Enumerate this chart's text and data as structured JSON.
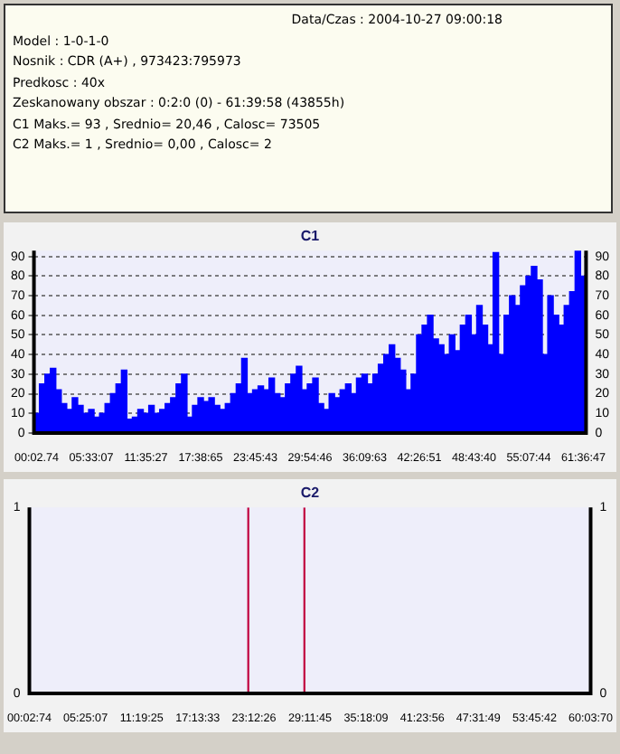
{
  "chart_data": [
    {
      "type": "other",
      "annotations": [
        "Data/Czas : 2004-10-27 09:00:18",
        "Model : 1-0-1-0",
        "Nosnik : CDR (A+) , 973423:795973",
        "Predkosc : 40x",
        "Zeskanowany obszar : 0:2:0 (0) - 61:39:58 (43855h)",
        "C1 Maks.= 93 , Srednio= 20,46 , Calosc= 73505",
        "C2 Maks.= 1 , Srednio= 0,00 , Calosc= 2"
      ]
    },
    {
      "type": "bar",
      "title": "C1",
      "color": "#0000ff",
      "grid": "y",
      "categories": [
        "00:02.74",
        null,
        null,
        null,
        null,
        null,
        null,
        null,
        null,
        null,
        "05:33:07",
        null,
        null,
        null,
        null,
        null,
        null,
        null,
        null,
        null,
        "11:35:27",
        null,
        null,
        null,
        null,
        null,
        null,
        null,
        null,
        null,
        "17:38:65",
        null,
        null,
        null,
        null,
        null,
        null,
        null,
        null,
        null,
        "23:45:43",
        null,
        null,
        null,
        null,
        null,
        null,
        null,
        null,
        null,
        "29:54:46",
        null,
        null,
        null,
        null,
        null,
        null,
        null,
        null,
        null,
        "36:09:63",
        null,
        null,
        null,
        null,
        null,
        null,
        null,
        null,
        null,
        "42:26:51",
        null,
        null,
        null,
        null,
        null,
        null,
        null,
        null,
        null,
        "48:43:40",
        null,
        null,
        null,
        null,
        null,
        null,
        null,
        null,
        null,
        "55:07:44",
        null,
        null,
        null,
        null,
        null,
        null,
        null,
        null,
        null,
        "61:36:47"
      ],
      "values": [
        10,
        25,
        30,
        33,
        22,
        15,
        12,
        18,
        14,
        10,
        12,
        8,
        10,
        15,
        20,
        25,
        32,
        7,
        8,
        12,
        10,
        14,
        10,
        12,
        15,
        18,
        25,
        30,
        8,
        14,
        18,
        16,
        18,
        14,
        12,
        15,
        20,
        25,
        38,
        20,
        22,
        24,
        22,
        28,
        20,
        18,
        25,
        30,
        34,
        22,
        25,
        28,
        15,
        12,
        20,
        18,
        22,
        25,
        20,
        28,
        30,
        25,
        30,
        35,
        40,
        45,
        38,
        32,
        22,
        30,
        50,
        55,
        60,
        48,
        45,
        40,
        50,
        42,
        55,
        60,
        50,
        65,
        55,
        45,
        92,
        40,
        60,
        70,
        65,
        75,
        80,
        85,
        78,
        40,
        70,
        60,
        55,
        65,
        72,
        93,
        80
      ],
      "ylim": [
        0,
        93
      ],
      "yticks": [
        0,
        10,
        20,
        30,
        40,
        50,
        60,
        70,
        80,
        90
      ],
      "y2lim": [
        0,
        93
      ],
      "y2ticks": [
        0,
        10,
        20,
        30,
        40,
        50,
        60,
        70,
        80,
        90
      ]
    },
    {
      "type": "bar",
      "title": "C2",
      "color": "#c0003c",
      "categories": [
        "00:02:74",
        null,
        null,
        null,
        null,
        null,
        null,
        null,
        null,
        null,
        "05:25:07",
        null,
        null,
        null,
        null,
        null,
        null,
        null,
        null,
        null,
        "11:19:25",
        null,
        null,
        null,
        null,
        null,
        null,
        null,
        null,
        null,
        "17:13:33",
        null,
        null,
        null,
        null,
        null,
        null,
        null,
        null,
        null,
        "23:12:26",
        null,
        null,
        null,
        null,
        null,
        null,
        null,
        null,
        null,
        "29:11:45",
        null,
        null,
        null,
        null,
        null,
        null,
        null,
        null,
        null,
        "35:18:09",
        null,
        null,
        null,
        null,
        null,
        null,
        null,
        null,
        null,
        "41:23:56",
        null,
        null,
        null,
        null,
        null,
        null,
        null,
        null,
        null,
        "47:31:49",
        null,
        null,
        null,
        null,
        null,
        null,
        null,
        null,
        null,
        "53:45:42",
        null,
        null,
        null,
        null,
        null,
        null,
        null,
        null,
        null,
        "60:03:70"
      ],
      "values": [
        0,
        0,
        0,
        0,
        0,
        0,
        0,
        0,
        0,
        0,
        0,
        0,
        0,
        0,
        0,
        0,
        0,
        0,
        0,
        0,
        0,
        0,
        0,
        0,
        0,
        0,
        0,
        0,
        0,
        0,
        0,
        0,
        0,
        0,
        0,
        0,
        0,
        0,
        0,
        1,
        0,
        0,
        0,
        0,
        0,
        0,
        0,
        0,
        0,
        1,
        0,
        0,
        0,
        0,
        0,
        0,
        0,
        0,
        0,
        0,
        0,
        0,
        0,
        0,
        0,
        0,
        0,
        0,
        0,
        0,
        0,
        0,
        0,
        0,
        0,
        0,
        0,
        0,
        0,
        0,
        0,
        0,
        0,
        0,
        0,
        0,
        0,
        0,
        0,
        0,
        0,
        0,
        0,
        0,
        0,
        0,
        0,
        0,
        0,
        0,
        0
      ],
      "ylim": [
        0,
        1
      ],
      "yticks": [
        0,
        1
      ],
      "y2lim": [
        0,
        1
      ],
      "y2ticks": [
        0,
        1
      ]
    }
  ]
}
